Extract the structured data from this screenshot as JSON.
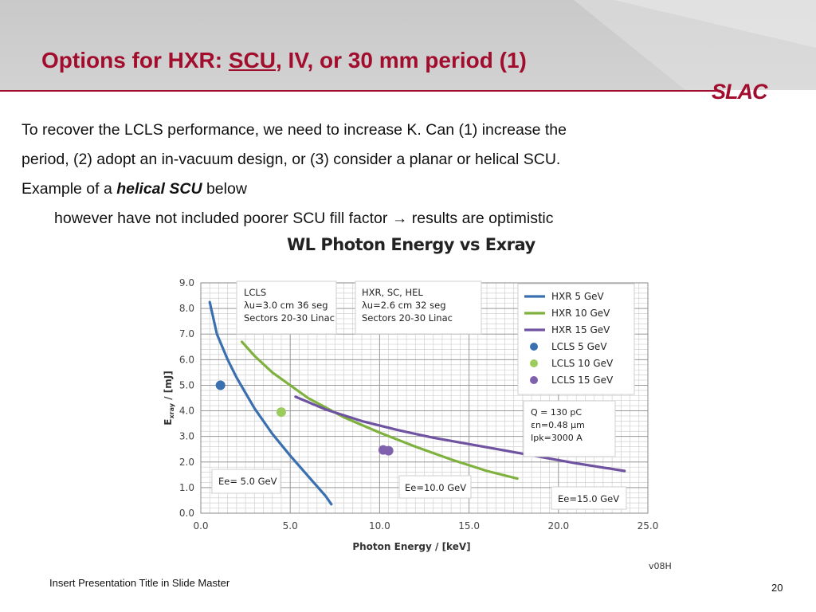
{
  "slide": {
    "title_prefix": "Options for HXR: ",
    "title_underlined": "SCU",
    "title_suffix": ", IV, or 30 mm period (1)",
    "logo": "SLAC",
    "body_lines": [
      "To recover the LCLS performance, we need to increase K.  Can (1) increase the",
      "period, (2) adopt an in-vacuum design, or (3) consider a planar or helical SCU."
    ],
    "line3_prefix": "Example of a ",
    "line3_emphasis": "helical SCU",
    "line3_suffix": " below",
    "line4_prefix": "however have not included poorer SCU fill factor ",
    "line4_arrow": "→",
    "line4_suffix": " results are optimistic",
    "footer": "Insert Presentation Title in Slide Master",
    "page_number": "20",
    "version": "v08H"
  },
  "chart_data": {
    "type": "line",
    "title": "WL Photon Energy vs Exray",
    "xlabel": "Photon Energy / [keV]",
    "ylabel_main": "E",
    "ylabel_sub": "xray",
    "ylabel_suffix": " / [mJ]",
    "xlim": [
      0.0,
      25.0
    ],
    "ylim": [
      0.0,
      9.0
    ],
    "x_ticks": [
      "0.0",
      "5.0",
      "10.0",
      "15.0",
      "20.0",
      "25.0"
    ],
    "y_ticks": [
      "0.0",
      "1.0",
      "2.0",
      "3.0",
      "4.0",
      "5.0",
      "6.0",
      "7.0",
      "8.0",
      "9.0"
    ],
    "grid": true,
    "legend_position": "top-right",
    "series": [
      {
        "name": "HXR   5 GeV",
        "color": "#3a6fb0",
        "x": [
          0.5,
          0.9,
          1.5,
          2.0,
          3.0,
          4.0,
          5.0,
          6.0,
          7.0,
          7.3
        ],
        "y": [
          8.25,
          7.0,
          6.0,
          5.3,
          4.1,
          3.1,
          2.25,
          1.45,
          0.65,
          0.35
        ]
      },
      {
        "name": "HXR 10 GeV",
        "color": "#7fb13f",
        "x": [
          2.3,
          3.0,
          4.0,
          6.0,
          8.0,
          10.0,
          12.0,
          14.0,
          16.0,
          17.7
        ],
        "y": [
          6.7,
          6.15,
          5.5,
          4.5,
          3.75,
          3.15,
          2.6,
          2.1,
          1.65,
          1.35
        ]
      },
      {
        "name": "HXR 15 GeV",
        "color": "#6f53a0",
        "x": [
          5.3,
          7.0,
          9.0,
          11.0,
          13.0,
          15.0,
          17.0,
          19.0,
          21.0,
          23.7
        ],
        "y": [
          4.55,
          4.05,
          3.6,
          3.25,
          2.95,
          2.7,
          2.45,
          2.2,
          1.95,
          1.65
        ]
      }
    ],
    "points": [
      {
        "name": "LCLS   5 GeV",
        "color": "#3a6fb0",
        "x": 1.1,
        "y": 5.0
      },
      {
        "name": "LCLS 10 GeV",
        "color": "#9ccb5e",
        "x": 4.5,
        "y": 3.95
      },
      {
        "name": "LCLS 15 GeV",
        "color": "#7e60ad",
        "x": 10.2,
        "y": 2.47
      }
    ],
    "annotations": {
      "lcls_box": [
        "LCLS",
        "λu=3.0 cm 36 seg",
        "Sectors 20-30 Linac"
      ],
      "hxr_box": [
        "HXR, SC, HEL",
        "λu=2.6 cm 32 seg",
        "Sectors 20-30 Linac"
      ],
      "params_box": [
        "Q = 130 pC",
        "εn=0.48 µm",
        "Ipk=3000 A"
      ],
      "energy_labels": [
        "Ee=  5.0 GeV",
        "Ee=10.0 GeV",
        "Ee=15.0 GeV"
      ]
    }
  }
}
